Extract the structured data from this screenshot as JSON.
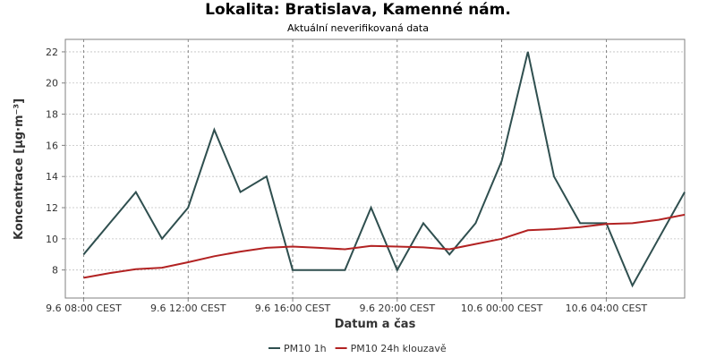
{
  "chart_data": {
    "type": "line",
    "title": "Lokalita: Bratislava, Kamenné nám.",
    "subtitle": "Aktuální neverifikovaná data",
    "xlabel": "Datum a čas",
    "ylabel": "Koncentrace [µg·m⁻³]",
    "ylim": [
      6.2,
      22.8
    ],
    "xlim": [
      -0.7,
      23.0
    ],
    "y_ticks": [
      8,
      10,
      12,
      14,
      16,
      18,
      20,
      22
    ],
    "x_ticks": [
      {
        "x": 0,
        "label": "9.6 08:00 CEST"
      },
      {
        "x": 4,
        "label": "9.6 12:00 CEST"
      },
      {
        "x": 8,
        "label": "9.6 16:00 CEST"
      },
      {
        "x": 12,
        "label": "9.6 20:00 CEST"
      },
      {
        "x": 16,
        "label": "10.6 00:00 CEST"
      },
      {
        "x": 20,
        "label": "10.6 04:00 CEST"
      }
    ],
    "grid": true,
    "legend_position": "bottom",
    "series": [
      {
        "name": "PM10 1h",
        "color": "#2f4f4f",
        "values": [
          9,
          11,
          13,
          10,
          12,
          17,
          13,
          14,
          8,
          8,
          8,
          12,
          8,
          11,
          9,
          11,
          15,
          22,
          14,
          11,
          11,
          7,
          10,
          13
        ]
      },
      {
        "name": "PM10 24h klouzavě",
        "color": "#b22222",
        "values": [
          7.5,
          7.8,
          8.05,
          8.15,
          8.5,
          8.88,
          9.18,
          9.42,
          9.5,
          9.42,
          9.33,
          9.55,
          9.5,
          9.45,
          9.33,
          9.67,
          10.0,
          10.55,
          10.62,
          10.75,
          10.95,
          11.0,
          11.22,
          11.55
        ]
      }
    ]
  }
}
